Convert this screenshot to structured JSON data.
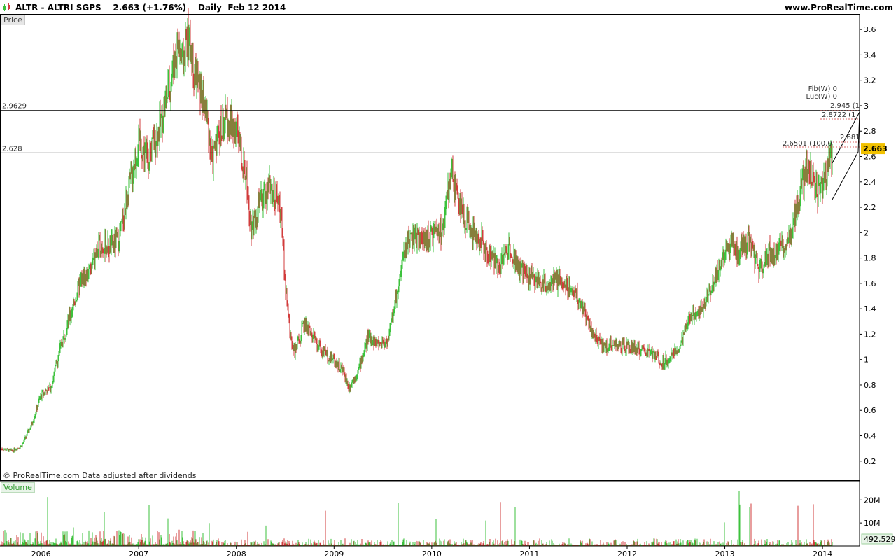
{
  "header": {
    "title": "ALTR - ALTRI SGPS    2.663 (+1.76%)    Daily  Feb 12 2014",
    "site": "www.ProRealTime.com"
  },
  "panels": {
    "price_label": "Price",
    "volume_label": "Volume"
  },
  "credit": "© ProRealTime.com  Data adjusted after dividends",
  "colors": {
    "up": "#3cc23c",
    "down": "#d23c3c",
    "last_price_bg": "#f2c200",
    "grid": "#000000"
  },
  "chart_data": {
    "type": "line",
    "title": "ALTR - ALTRI SGPS",
    "last_price": "2.663",
    "ylim": [
      0.05,
      3.7
    ],
    "y_ticks": [
      0.2,
      0.4,
      0.6,
      0.8,
      1,
      1.2,
      1.4,
      1.6,
      1.8,
      2,
      2.2,
      2.4,
      2.6,
      2.8,
      3,
      3.2,
      3.4,
      3.6
    ],
    "y_tick_labels": [
      "0.2",
      "0.4",
      "0.6",
      "0.8",
      "1",
      "1.2",
      "1.4",
      "1.6",
      "1.8",
      "2",
      "2.2",
      "2.4",
      "2.6",
      "2.8",
      "3",
      "3.2",
      "3.4",
      "3.6"
    ],
    "x_tick_labels": [
      "2006",
      "2007",
      "2008",
      "2009",
      "2010",
      "2011",
      "2012",
      "2013",
      "2014"
    ],
    "x_tick_dates": [
      2006.0,
      2007.0,
      2008.0,
      2009.0,
      2010.0,
      2011.0,
      2012.0,
      2013.0,
      2014.0
    ],
    "xlim": [
      2005.58,
      2014.25
    ],
    "horizontal_levels": [
      {
        "value": 2.9629,
        "label": "2.9629"
      },
      {
        "value": 2.628,
        "label": "2.628"
      }
    ],
    "fib_labels": [
      "Fib(W) 0",
      "Luc(W) 0",
      "2.945 (1",
      "2.8722 (1",
      "2.6501 (100.0",
      "2.681"
    ],
    "series": [
      {
        "points": [
          [
            2005.58,
            0.3
          ],
          [
            2005.7,
            0.28
          ],
          [
            2005.8,
            0.32
          ],
          [
            2005.9,
            0.48
          ],
          [
            2006.0,
            0.72
          ],
          [
            2006.1,
            0.78
          ],
          [
            2006.2,
            1.1
          ],
          [
            2006.3,
            1.35
          ],
          [
            2006.4,
            1.6
          ],
          [
            2006.5,
            1.7
          ],
          [
            2006.6,
            1.9
          ],
          [
            2006.7,
            1.88
          ],
          [
            2006.8,
            1.95
          ],
          [
            2006.9,
            2.35
          ],
          [
            2007.0,
            2.7
          ],
          [
            2007.1,
            2.6
          ],
          [
            2007.2,
            2.8
          ],
          [
            2007.3,
            3.1
          ],
          [
            2007.4,
            3.5
          ],
          [
            2007.45,
            3.35
          ],
          [
            2007.5,
            3.55
          ],
          [
            2007.6,
            3.2
          ],
          [
            2007.7,
            2.9
          ],
          [
            2007.75,
            2.55
          ],
          [
            2007.8,
            2.75
          ],
          [
            2007.9,
            2.9
          ],
          [
            2008.0,
            2.8
          ],
          [
            2008.1,
            2.45
          ],
          [
            2008.15,
            2.05
          ],
          [
            2008.25,
            2.25
          ],
          [
            2008.35,
            2.38
          ],
          [
            2008.45,
            2.2
          ],
          [
            2008.5,
            1.6
          ],
          [
            2008.55,
            1.2
          ],
          [
            2008.6,
            1.05
          ],
          [
            2008.7,
            1.3
          ],
          [
            2008.8,
            1.15
          ],
          [
            2008.9,
            1.05
          ],
          [
            2009.0,
            1.0
          ],
          [
            2009.1,
            0.9
          ],
          [
            2009.15,
            0.78
          ],
          [
            2009.25,
            0.92
          ],
          [
            2009.35,
            1.18
          ],
          [
            2009.45,
            1.12
          ],
          [
            2009.55,
            1.15
          ],
          [
            2009.65,
            1.55
          ],
          [
            2009.75,
            1.95
          ],
          [
            2009.85,
            1.95
          ],
          [
            2009.95,
            1.95
          ],
          [
            2010.1,
            2.0
          ],
          [
            2010.2,
            2.45
          ],
          [
            2010.3,
            2.2
          ],
          [
            2010.4,
            2.0
          ],
          [
            2010.5,
            1.95
          ],
          [
            2010.6,
            1.8
          ],
          [
            2010.7,
            1.75
          ],
          [
            2010.8,
            1.9
          ],
          [
            2010.9,
            1.7
          ],
          [
            2011.0,
            1.65
          ],
          [
            2011.15,
            1.6
          ],
          [
            2011.3,
            1.62
          ],
          [
            2011.45,
            1.55
          ],
          [
            2011.55,
            1.4
          ],
          [
            2011.65,
            1.2
          ],
          [
            2011.75,
            1.1
          ],
          [
            2011.85,
            1.12
          ],
          [
            2011.95,
            1.1
          ],
          [
            2012.1,
            1.08
          ],
          [
            2012.25,
            1.05
          ],
          [
            2012.35,
            0.98
          ],
          [
            2012.45,
            1.02
          ],
          [
            2012.55,
            1.12
          ],
          [
            2012.65,
            1.35
          ],
          [
            2012.75,
            1.4
          ],
          [
            2012.85,
            1.55
          ],
          [
            2012.95,
            1.75
          ],
          [
            2013.05,
            1.9
          ],
          [
            2013.15,
            1.85
          ],
          [
            2013.25,
            1.95
          ],
          [
            2013.35,
            1.7
          ],
          [
            2013.45,
            1.85
          ],
          [
            2013.55,
            1.85
          ],
          [
            2013.65,
            1.95
          ],
          [
            2013.75,
            2.25
          ],
          [
            2013.85,
            2.55
          ],
          [
            2013.95,
            2.3
          ],
          [
            2014.0,
            2.35
          ],
          [
            2014.1,
            2.663
          ]
        ]
      }
    ]
  },
  "volume": {
    "ticks": [
      {
        "value": 20,
        "label": "20M"
      },
      {
        "value": 10,
        "label": "10M"
      }
    ],
    "ymax": 28,
    "last_label": "492,529"
  }
}
